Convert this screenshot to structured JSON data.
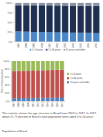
{
  "chart_data": [
    {
      "type": "bar",
      "stacked": true,
      "legend": "bottom",
      "categories": [
        "2007",
        "2008",
        "2009",
        "2010",
        "2011",
        "2012",
        "2013",
        "2014",
        "2015",
        "2016",
        "2017"
      ],
      "series": [
        {
          "name": "0-14 years",
          "color": "#4a86c8",
          "values": [
            26.0,
            25.5,
            25.0,
            24.6,
            24.2,
            23.8,
            23.4,
            23.0,
            22.6,
            22.2,
            21.73
          ]
        },
        {
          "name": "15-64 years",
          "color": "#1f2f4f",
          "values": [
            67.4,
            67.7,
            68.0,
            68.3,
            68.5,
            68.7,
            68.9,
            69.1,
            69.3,
            69.4,
            69.67
          ]
        },
        {
          "name": "65 years and older",
          "color": "#8a96a6",
          "values": [
            6.6,
            6.8,
            7.0,
            7.1,
            7.3,
            7.5,
            7.7,
            7.9,
            8.1,
            8.4,
            8.6
          ]
        }
      ],
      "ylim": [
        0,
        100
      ],
      "yticks": [
        {
          "value": 0,
          "label": "0%"
        },
        {
          "value": 25,
          "label": "25%"
        },
        {
          "value": 50,
          "label": "50%"
        },
        {
          "value": 75,
          "label": "75%"
        },
        {
          "value": 100,
          "label": "100%"
        }
      ]
    },
    {
      "type": "bar",
      "stacked": true,
      "legend": "right",
      "ylabel": "Share of total population",
      "categories": [
        "2007",
        "2008",
        "2009",
        "2010",
        "2011",
        "2012",
        "2013",
        "2014",
        "2015",
        "2016",
        "2017"
      ],
      "series": [
        {
          "name": "65 years and older",
          "color": "#4f81bd",
          "values": [
            6.6,
            6.8,
            7.0,
            7.1,
            7.3,
            7.5,
            7.7,
            7.9,
            8.1,
            8.4,
            8.6
          ]
        },
        {
          "name": "15-64 years",
          "color": "#c0504d",
          "values": [
            67.4,
            67.7,
            68.0,
            68.3,
            68.5,
            68.7,
            68.9,
            69.1,
            69.3,
            69.4,
            69.67
          ]
        },
        {
          "name": "0-14 years",
          "color": "#9bbb59",
          "values": [
            26.0,
            25.5,
            25.0,
            24.6,
            24.2,
            23.8,
            23.4,
            23.0,
            22.6,
            22.2,
            21.73
          ]
        }
      ],
      "ylim": [
        0,
        100
      ],
      "yticks": [
        {
          "value": 0,
          "label": "0%"
        },
        {
          "value": 20,
          "label": "20%"
        },
        {
          "value": 40,
          "label": "40%"
        },
        {
          "value": 60,
          "label": "60%"
        },
        {
          "value": 80,
          "label": "80%"
        },
        {
          "value": 100,
          "label": "100%"
        }
      ]
    }
  ],
  "paragraphs": [
    "This statistic shows the age structure in Brazil from 2007 to 2017. In 2017, about 21.73 percent of Brazil's total population were aged 0 to 14 years.",
    "Population of Brazil"
  ]
}
